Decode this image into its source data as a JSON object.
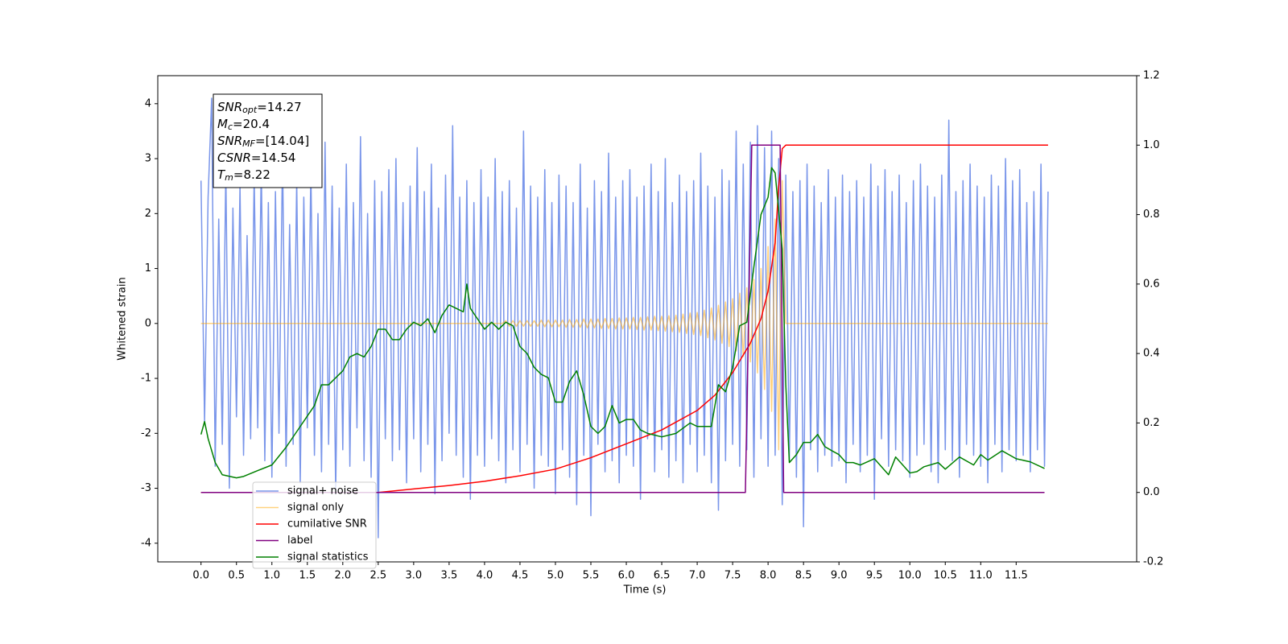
{
  "chart_data": {
    "type": "line",
    "xlabel": "Time (s)",
    "ylabel": "Whitened strain",
    "xlim": [
      -0.61,
      13.2
    ],
    "ylim": [
      -4.34,
      4.51
    ],
    "y2lim": [
      -0.2,
      1.2
    ],
    "xticks": [
      {
        "value": 0,
        "label": "0.0"
      },
      0.5,
      {
        "value": 1,
        "label": "1.0"
      },
      1.5,
      {
        "value": 2,
        "label": "2.0"
      },
      2.5,
      {
        "value": 3,
        "label": "3.0"
      },
      3.5,
      {
        "value": 4,
        "label": "4.0"
      },
      4.5,
      {
        "value": 5,
        "label": "5.0"
      },
      5.5,
      {
        "value": 6,
        "label": "6.0"
      },
      6.5,
      {
        "value": 7,
        "label": "7.0"
      },
      7.5,
      {
        "value": 8,
        "label": "8.0"
      },
      8.5,
      {
        "value": 9,
        "label": "9.0"
      },
      9.5,
      {
        "value": 10,
        "label": "10.0"
      },
      10.5,
      {
        "value": 11,
        "label": "11.0"
      },
      11.5
    ],
    "yticks": [
      -4,
      -3,
      -2,
      -1,
      0,
      1,
      2,
      3,
      4
    ],
    "y2ticks": [
      -0.2,
      {
        "value": 0,
        "label": "0.0"
      },
      0.2,
      0.4,
      0.6,
      0.8,
      {
        "value": 1,
        "label": "1.0"
      },
      1.2
    ],
    "legend": "lower left",
    "annotation": {
      "lines": [
        {
          "text": "SNR",
          "sub": "opt",
          "value": "=14.27"
        },
        {
          "text": "M",
          "sub": "c",
          "value": "=20.4"
        },
        {
          "text": "SNR",
          "sub": "MF",
          "value": "=[14.04]"
        },
        {
          "text": "CSNR",
          "value": "=14.54"
        },
        {
          "text": "T",
          "sub": "m",
          "value": "=8.22"
        }
      ]
    },
    "series": [
      {
        "name": "signal+ noise",
        "color": "#4169e1",
        "alpha": 0.7,
        "axis": "y",
        "x": [
          0,
          0.05,
          0.1,
          0.15,
          0.2,
          0.25,
          0.3,
          0.35,
          0.4,
          0.45,
          0.5,
          0.55,
          0.6,
          0.65,
          0.7,
          0.75,
          0.8,
          0.85,
          0.9,
          0.95,
          1,
          1.05,
          1.1,
          1.15,
          1.2,
          1.25,
          1.3,
          1.35,
          1.4,
          1.45,
          1.5,
          1.55,
          1.6,
          1.65,
          1.7,
          1.75,
          1.8,
          1.85,
          1.9,
          1.95,
          2,
          2.05,
          2.1,
          2.15,
          2.2,
          2.25,
          2.3,
          2.35,
          2.4,
          2.45,
          2.5,
          2.55,
          2.6,
          2.65,
          2.7,
          2.75,
          2.8,
          2.85,
          2.9,
          2.95,
          3,
          3.05,
          3.1,
          3.15,
          3.2,
          3.25,
          3.3,
          3.35,
          3.4,
          3.45,
          3.5,
          3.55,
          3.6,
          3.65,
          3.7,
          3.75,
          3.8,
          3.85,
          3.9,
          3.95,
          4,
          4.05,
          4.1,
          4.15,
          4.2,
          4.25,
          4.3,
          4.35,
          4.4,
          4.45,
          4.5,
          4.55,
          4.6,
          4.65,
          4.7,
          4.75,
          4.8,
          4.85,
          4.9,
          4.95,
          5,
          5.05,
          5.1,
          5.15,
          5.2,
          5.25,
          5.3,
          5.35,
          5.4,
          5.45,
          5.5,
          5.55,
          5.6,
          5.65,
          5.7,
          5.75,
          5.8,
          5.85,
          5.9,
          5.95,
          6,
          6.05,
          6.1,
          6.15,
          6.2,
          6.25,
          6.3,
          6.35,
          6.4,
          6.45,
          6.5,
          6.55,
          6.6,
          6.65,
          6.7,
          6.75,
          6.8,
          6.85,
          6.9,
          6.95,
          7,
          7.05,
          7.1,
          7.15,
          7.2,
          7.25,
          7.3,
          7.35,
          7.4,
          7.45,
          7.5,
          7.55,
          7.6,
          7.65,
          7.7,
          7.75,
          7.8,
          7.85,
          7.9,
          7.95,
          8,
          8.05,
          8.1,
          8.15,
          8.2,
          8.25,
          8.3,
          8.35,
          8.4,
          8.45,
          8.5,
          8.55,
          8.6,
          8.65,
          8.7,
          8.75,
          8.8,
          8.85,
          8.9,
          8.95,
          9,
          9.05,
          9.1,
          9.15,
          9.2,
          9.25,
          9.3,
          9.35,
          9.4,
          9.45,
          9.5,
          9.55,
          9.6,
          9.65,
          9.7,
          9.75,
          9.8,
          9.85,
          9.9,
          9.95,
          10,
          10.05,
          10.1,
          10.15,
          10.2,
          10.25,
          10.3,
          10.35,
          10.4,
          10.45,
          10.5,
          10.55,
          10.6,
          10.65,
          10.7,
          10.75,
          10.8,
          10.85,
          10.9,
          10.95,
          11,
          11.05,
          11.1,
          11.15,
          11.2,
          11.25,
          11.3,
          11.35,
          11.4,
          11.45,
          11.5,
          11.55,
          11.6,
          11.65,
          11.7,
          11.75,
          11.8,
          11.85,
          11.9,
          11.95
        ],
        "values": [
          2.6,
          -1.8,
          2.3,
          4.1,
          -2.6,
          1.9,
          -2.2,
          2.8,
          -3.0,
          2.1,
          -1.7,
          2.5,
          -2.4,
          1.6,
          -2.1,
          2.7,
          -1.9,
          2.9,
          -2.5,
          2.2,
          -2.8,
          2.4,
          -2.0,
          3.1,
          -2.6,
          1.8,
          -2.2,
          2.6,
          -2.9,
          2.3,
          -1.9,
          2.8,
          -2.4,
          2.0,
          -2.7,
          3.3,
          -2.2,
          2.5,
          -3.1,
          2.1,
          -2.3,
          2.9,
          -2.6,
          2.2,
          -1.9,
          3.4,
          -2.5,
          2.0,
          -2.8,
          2.6,
          -3.9,
          2.4,
          -2.1,
          2.8,
          -2.5,
          3.0,
          -2.3,
          2.2,
          -2.9,
          2.5,
          -2.1,
          3.2,
          -2.7,
          2.4,
          -2.2,
          2.9,
          -3.1,
          2.1,
          -2.5,
          2.7,
          -2.0,
          3.6,
          -2.4,
          2.3,
          -2.8,
          2.6,
          -3.2,
          2.2,
          -2.4,
          2.8,
          -2.6,
          2.3,
          -2.1,
          3.0,
          -2.5,
          2.4,
          -2.9,
          2.6,
          -2.3,
          2.1,
          -2.7,
          3.5,
          -2.2,
          2.5,
          -3.0,
          2.3,
          -2.4,
          2.8,
          -2.6,
          2.2,
          -3.1,
          2.7,
          -2.3,
          2.5,
          -2.8,
          2.2,
          -3.3,
          2.9,
          -2.4,
          2.1,
          -3.5,
          2.6,
          -2.2,
          2.4,
          -2.7,
          3.1,
          -2.5,
          2.3,
          -2.9,
          2.6,
          -2.4,
          2.8,
          -2.6,
          2.3,
          -3.2,
          2.5,
          -2.1,
          2.9,
          -2.7,
          2.4,
          -2.3,
          3.0,
          -2.8,
          2.2,
          -2.5,
          2.7,
          -2.9,
          2.4,
          -2.2,
          2.6,
          -2.7,
          3.1,
          -2.4,
          2.5,
          -2.9,
          2.3,
          -3.4,
          2.8,
          -2.5,
          2.6,
          -2.2,
          3.5,
          -2.6,
          2.9,
          -2.3,
          3.3,
          -2.8,
          3.6,
          -2.1,
          3.2,
          -2.6,
          3.5,
          -2.4,
          3.0,
          -3.3,
          2.7,
          -2.5,
          2.4,
          -2.8,
          2.6,
          -3.7,
          2.9,
          -2.3,
          2.5,
          -2.7,
          2.2,
          -2.4,
          2.8,
          -2.6,
          2.3,
          -2.5,
          2.7,
          -2.9,
          2.4,
          -2.2,
          2.6,
          -2.7,
          2.3,
          -2.4,
          2.9,
          -3.2,
          2.5,
          -2.1,
          2.8,
          -2.6,
          2.4,
          -2.3,
          2.7,
          -2.5,
          2.2,
          -2.8,
          2.6,
          -2.4,
          2.9,
          -2.2,
          2.5,
          -2.7,
          2.3,
          -2.9,
          2.7,
          -2.3,
          3.7,
          -2.5,
          2.4,
          -2.8,
          2.6,
          -2.2,
          2.9,
          -2.4,
          2.5,
          -2.6,
          2.3,
          -2.9,
          2.7,
          -2.2,
          2.5,
          -2.7,
          3.0,
          -2.3,
          2.6,
          -2.5,
          2.8,
          -2.4,
          2.2,
          -2.7,
          2.4,
          -2.3,
          2.9,
          -2.6,
          2.4
        ]
      },
      {
        "name": "signal only",
        "color": "#ffa500",
        "alpha": 0.5,
        "axis": "y",
        "x": [
          0,
          4.25,
          4.3,
          4.35,
          4.4,
          4.45,
          4.5,
          4.55,
          4.6,
          4.65,
          4.7,
          4.75,
          4.8,
          4.85,
          4.9,
          4.95,
          5,
          5.05,
          5.1,
          5.15,
          5.2,
          5.25,
          5.3,
          5.35,
          5.4,
          5.45,
          5.5,
          5.55,
          5.6,
          5.65,
          5.7,
          5.75,
          5.8,
          5.85,
          5.9,
          5.95,
          6,
          6.05,
          6.1,
          6.15,
          6.2,
          6.25,
          6.3,
          6.35,
          6.4,
          6.45,
          6.5,
          6.55,
          6.6,
          6.65,
          6.7,
          6.75,
          6.8,
          6.85,
          6.9,
          6.95,
          7,
          7.05,
          7.1,
          7.15,
          7.2,
          7.25,
          7.3,
          7.35,
          7.4,
          7.45,
          7.5,
          7.55,
          7.6,
          7.65,
          7.7,
          7.75,
          7.8,
          7.85,
          7.9,
          7.95,
          8,
          8.05,
          8.1,
          8.15,
          8.2,
          8.25,
          11.95
        ],
        "values": [
          0,
          0,
          0.05,
          -0.05,
          0.05,
          -0.05,
          0.05,
          -0.05,
          0.05,
          -0.05,
          0.05,
          -0.05,
          0.06,
          -0.06,
          0.06,
          -0.06,
          0.06,
          -0.06,
          0.06,
          -0.07,
          0.07,
          -0.07,
          0.07,
          -0.07,
          0.08,
          -0.08,
          0.08,
          -0.08,
          0.08,
          -0.09,
          0.09,
          -0.09,
          0.09,
          -0.1,
          0.1,
          -0.1,
          0.1,
          -0.1,
          0.11,
          -0.11,
          0.11,
          -0.12,
          0.12,
          -0.12,
          0.13,
          -0.13,
          0.13,
          -0.14,
          0.14,
          -0.15,
          0.15,
          -0.16,
          0.17,
          -0.18,
          0.19,
          -0.2,
          0.2,
          -0.22,
          0.24,
          -0.26,
          0.28,
          -0.3,
          0.33,
          -0.36,
          0.39,
          -0.42,
          0.45,
          -0.5,
          0.55,
          -0.6,
          0.65,
          -0.7,
          0.8,
          -0.9,
          1.0,
          -1.2,
          1.4,
          -1.6,
          1.9,
          -2.3,
          2.6,
          0,
          0
        ]
      },
      {
        "name": "cumilative SNR",
        "color": "#ff0000",
        "axis": "y2",
        "x": [
          0,
          2.5,
          3.0,
          3.5,
          4.0,
          4.5,
          5.0,
          5.5,
          6.0,
          6.5,
          7.0,
          7.25,
          7.5,
          7.75,
          7.9,
          8.0,
          8.1,
          8.15,
          8.2,
          8.25,
          11.95
        ],
        "values": [
          0,
          0,
          0.01,
          0.02,
          0.032,
          0.048,
          0.067,
          0.1,
          0.14,
          0.18,
          0.236,
          0.28,
          0.345,
          0.43,
          0.5,
          0.58,
          0.72,
          0.88,
          0.99,
          1.0,
          1.0
        ]
      },
      {
        "name": "label",
        "color": "#800080",
        "axis": "y2",
        "x": [
          0,
          7.68,
          7.77,
          8.17,
          8.22,
          11.9
        ],
        "values": [
          0,
          0,
          1,
          1,
          0,
          0
        ]
      },
      {
        "name": "signal statistics",
        "color": "#008000",
        "axis": "y2",
        "x": [
          0,
          0.05,
          0.1,
          0.2,
          0.3,
          0.5,
          0.6,
          0.8,
          1.0,
          1.2,
          1.4,
          1.6,
          1.7,
          1.8,
          1.9,
          2.0,
          2.1,
          2.2,
          2.3,
          2.4,
          2.5,
          2.6,
          2.7,
          2.8,
          2.9,
          3.0,
          3.1,
          3.2,
          3.3,
          3.4,
          3.5,
          3.6,
          3.7,
          3.75,
          3.8,
          3.9,
          4.0,
          4.1,
          4.2,
          4.3,
          4.4,
          4.5,
          4.6,
          4.7,
          4.8,
          4.9,
          5.0,
          5.1,
          5.2,
          5.3,
          5.4,
          5.5,
          5.6,
          5.7,
          5.8,
          5.9,
          6.0,
          6.1,
          6.2,
          6.3,
          6.5,
          6.7,
          6.9,
          7.0,
          7.2,
          7.3,
          7.4,
          7.5,
          7.6,
          7.7,
          7.8,
          7.9,
          8.0,
          8.05,
          8.1,
          8.2,
          8.25,
          8.3,
          8.4,
          8.5,
          8.6,
          8.7,
          8.8,
          8.9,
          9.0,
          9.1,
          9.2,
          9.3,
          9.5,
          9.7,
          9.8,
          10.0,
          10.1,
          10.2,
          10.4,
          10.5,
          10.7,
          10.9,
          11.0,
          11.1,
          11.3,
          11.5,
          11.7,
          11.9
        ],
        "values": [
          0.167,
          0.204,
          0.155,
          0.086,
          0.051,
          0.042,
          0.046,
          0.063,
          0.079,
          0.13,
          0.19,
          0.25,
          0.31,
          0.31,
          0.33,
          0.35,
          0.39,
          0.4,
          0.39,
          0.42,
          0.47,
          0.47,
          0.44,
          0.44,
          0.47,
          0.49,
          0.48,
          0.5,
          0.46,
          0.51,
          0.54,
          0.53,
          0.52,
          0.6,
          0.53,
          0.5,
          0.47,
          0.49,
          0.47,
          0.49,
          0.48,
          0.42,
          0.4,
          0.36,
          0.34,
          0.33,
          0.26,
          0.26,
          0.32,
          0.35,
          0.28,
          0.19,
          0.17,
          0.19,
          0.25,
          0.2,
          0.21,
          0.21,
          0.18,
          0.17,
          0.16,
          0.17,
          0.2,
          0.19,
          0.19,
          0.31,
          0.29,
          0.36,
          0.48,
          0.49,
          0.65,
          0.8,
          0.85,
          0.935,
          0.92,
          0.7,
          0.31,
          0.086,
          0.109,
          0.144,
          0.144,
          0.167,
          0.132,
          0.12,
          0.109,
          0.086,
          0.086,
          0.079,
          0.097,
          0.051,
          0.102,
          0.056,
          0.06,
          0.074,
          0.086,
          0.067,
          0.102,
          0.079,
          0.109,
          0.093,
          0.12,
          0.097,
          0.088,
          0.069
        ]
      }
    ]
  }
}
